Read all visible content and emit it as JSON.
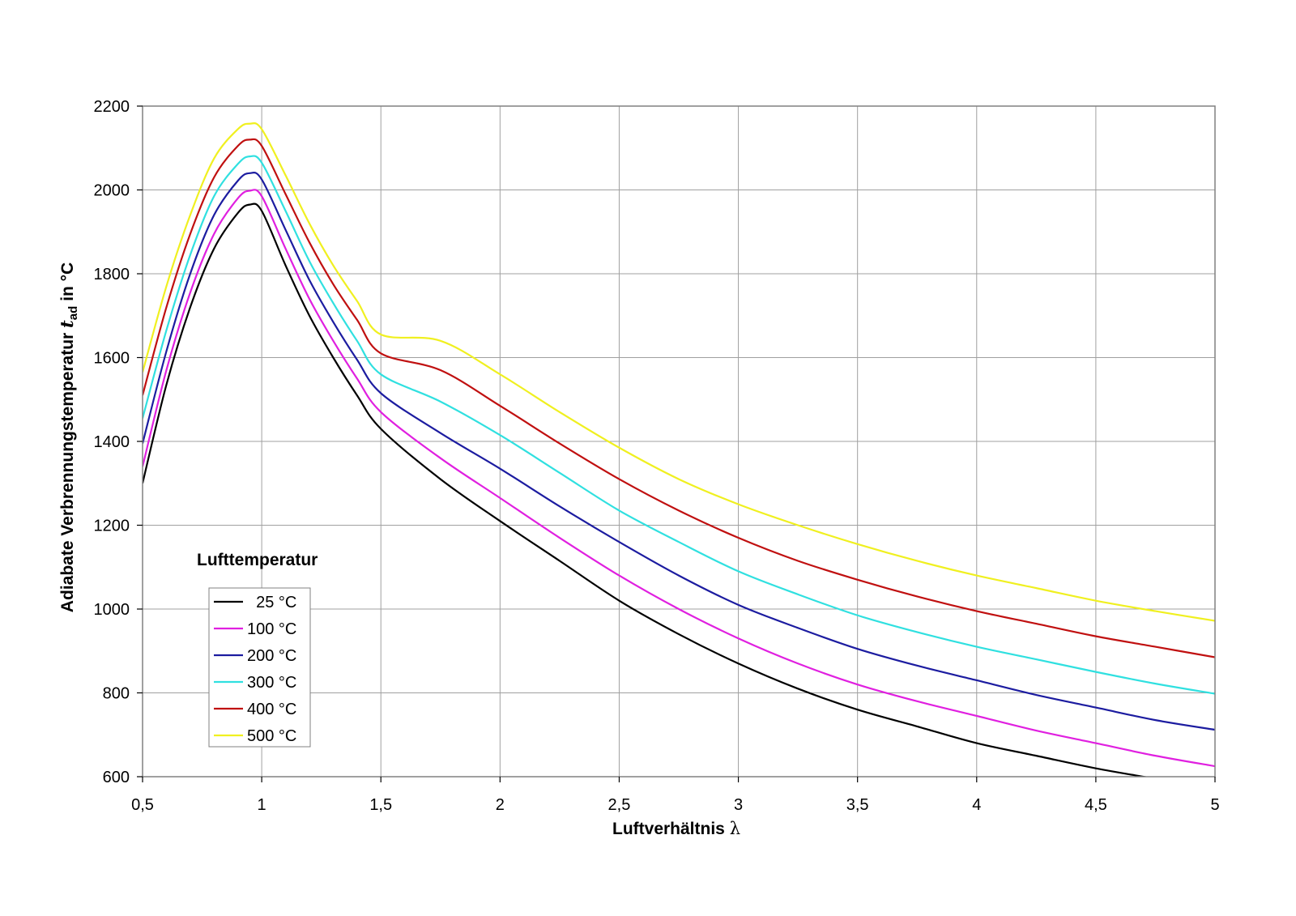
{
  "chart_data": {
    "type": "line",
    "xlabel_main": "Luftverhältnis ",
    "xlabel_symbol": "λ",
    "ylabel_prefix": "Adiabate Verbrennungstemperatur ",
    "ylabel_symbol": "t",
    "ylabel_subscript": "ad",
    "ylabel_suffix": " in °C",
    "xlim": [
      0.5,
      5
    ],
    "ylim": [
      600,
      2200
    ],
    "x_ticks": [
      0.5,
      1,
      1.5,
      2,
      2.5,
      3,
      3.5,
      4,
      4.5,
      5
    ],
    "x_tick_labels": [
      "0,5",
      "1",
      "1,5",
      "2",
      "2,5",
      "3",
      "3,5",
      "4",
      "4,5",
      "5"
    ],
    "y_ticks": [
      600,
      800,
      1000,
      1200,
      1400,
      1600,
      1800,
      2000,
      2200
    ],
    "y_tick_labels": [
      "600",
      "800",
      "1000",
      "1200",
      "1400",
      "1600",
      "1800",
      "2000",
      "2200"
    ],
    "grid": true,
    "legend_title": "Lufttemperatur",
    "legend_position": "lower-left",
    "x": [
      0.5,
      0.6,
      0.7,
      0.8,
      0.9,
      0.95,
      1.0,
      1.1,
      1.2,
      1.3,
      1.4,
      1.5,
      1.75,
      2.0,
      2.25,
      2.5,
      2.75,
      3.0,
      3.25,
      3.5,
      3.75,
      4.0,
      4.25,
      4.5,
      4.75,
      5.0
    ],
    "series": [
      {
        "name": "  25 °C",
        "color": "#000000",
        "values": [
          1300,
          1535,
          1720,
          1860,
          1945,
          1965,
          1950,
          1820,
          1700,
          1600,
          1510,
          1430,
          1310,
          1210,
          1115,
          1020,
          940,
          870,
          810,
          760,
          720,
          680,
          650,
          620,
          595,
          570
        ]
      },
      {
        "name": "100 °C",
        "color": "#e020e0",
        "values": [
          1340,
          1570,
          1755,
          1895,
          1980,
          1998,
          1985,
          1860,
          1740,
          1640,
          1550,
          1470,
          1360,
          1265,
          1170,
          1080,
          1000,
          930,
          870,
          820,
          780,
          745,
          710,
          680,
          650,
          625
        ]
      },
      {
        "name": "200 °C",
        "color": "#1c1ca0",
        "values": [
          1395,
          1615,
          1800,
          1940,
          2022,
          2040,
          2025,
          1905,
          1785,
          1685,
          1595,
          1515,
          1420,
          1335,
          1245,
          1160,
          1080,
          1010,
          955,
          905,
          865,
          830,
          795,
          765,
          735,
          712
        ]
      },
      {
        "name": "300 °C",
        "color": "#30e0e0",
        "values": [
          1455,
          1665,
          1845,
          1985,
          2062,
          2080,
          2065,
          1950,
          1830,
          1730,
          1640,
          1560,
          1495,
          1415,
          1325,
          1235,
          1160,
          1090,
          1035,
          985,
          945,
          910,
          880,
          850,
          822,
          798
        ]
      },
      {
        "name": "400 °C",
        "color": "#c01010",
        "values": [
          1510,
          1720,
          1895,
          2030,
          2105,
          2120,
          2105,
          1990,
          1875,
          1775,
          1690,
          1610,
          1570,
          1485,
          1395,
          1310,
          1235,
          1170,
          1115,
          1070,
          1030,
          995,
          965,
          935,
          910,
          885
        ]
      },
      {
        "name": "500 °C",
        "color": "#f0f020",
        "values": [
          1565,
          1770,
          1940,
          2075,
          2145,
          2158,
          2145,
          2035,
          1920,
          1820,
          1735,
          1655,
          1640,
          1560,
          1470,
          1385,
          1310,
          1250,
          1200,
          1155,
          1115,
          1080,
          1050,
          1020,
          995,
          972
        ]
      }
    ]
  }
}
